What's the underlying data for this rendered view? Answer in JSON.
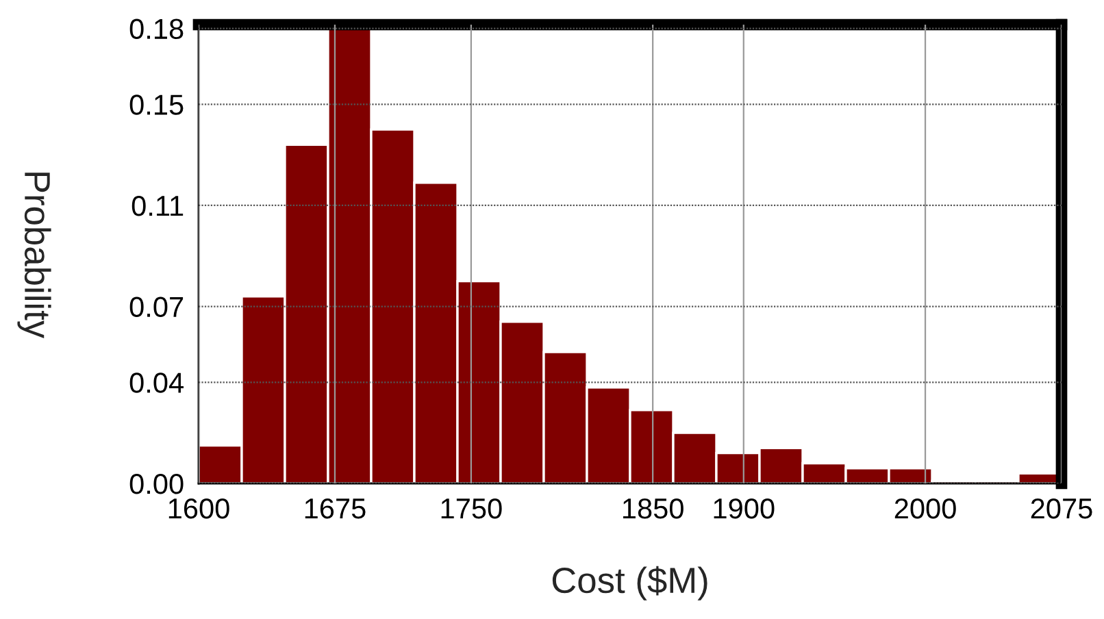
{
  "chart_data": {
    "type": "histogram",
    "xlabel": "Cost ($M)",
    "ylabel": "Probability",
    "color": "#800000",
    "bins": [
      1600,
      1623.75,
      1647.5,
      1671.25,
      1695,
      1718.75,
      1742.5,
      1766.25,
      1790,
      1813.75,
      1837.5,
      1861.25,
      1885,
      1908.75,
      1932.5,
      1956.25,
      1980,
      2003.75,
      2027.5,
      2051.25,
      2075
    ],
    "values": [
      0.015,
      0.074,
      0.134,
      0.18,
      0.14,
      0.119,
      0.08,
      0.064,
      0.052,
      0.038,
      0.029,
      0.02,
      0.012,
      0.014,
      0.008,
      0.006,
      0.006,
      0.001,
      0.001,
      0.004
    ],
    "xlim": [
      1600,
      2075
    ],
    "xticks": [
      1600,
      1675,
      1750,
      1850,
      1900,
      2000,
      2075
    ],
    "ylim": [
      0,
      0.1815
    ],
    "yticks": [
      {
        "value": 0,
        "label": "0.00"
      },
      {
        "value": 0.04,
        "label": "0.04"
      },
      {
        "value": 0.07,
        "label": "0.07"
      },
      {
        "value": 0.11,
        "label": "0.11"
      },
      {
        "value": 0.15,
        "label": "0.15"
      },
      {
        "value": 0.18,
        "label": "0.18"
      }
    ],
    "grid": true
  }
}
